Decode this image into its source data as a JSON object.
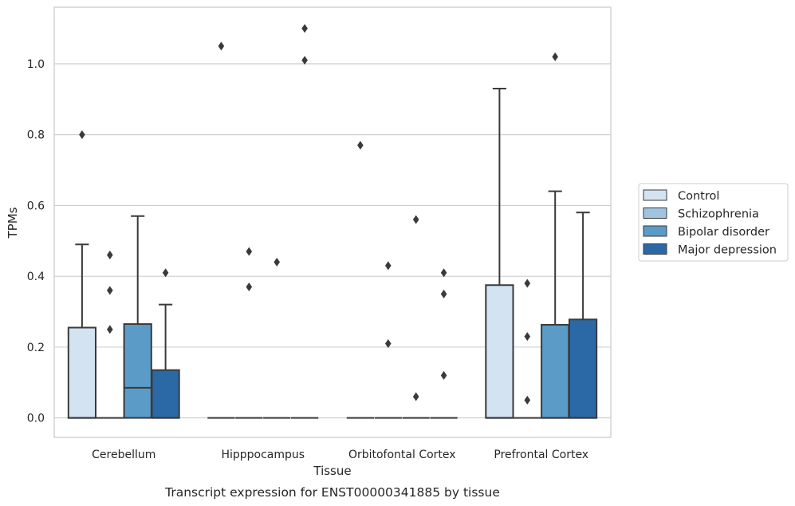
{
  "chart_data": {
    "type": "box",
    "title": "",
    "caption": "Transcript expression for ENST00000341885 by tissue",
    "xlabel": "Tissue",
    "ylabel": "TPMs",
    "ylim": [
      -0.055,
      1.16
    ],
    "yticks": [
      0.0,
      0.2,
      0.4,
      0.6,
      0.8,
      1.0
    ],
    "ytick_labels": [
      "0.0",
      "0.2",
      "0.4",
      "0.6",
      "0.8",
      "1.0"
    ],
    "grid": true,
    "legend_position": "right",
    "categories": [
      "Cerebellum",
      "Hipppocampus",
      "Orbitofontal Cortex",
      "Prefrontal Cortex"
    ],
    "series": [
      {
        "name": "Control",
        "color": "#d3e3f2",
        "boxes": [
          {
            "q1": 0.0,
            "median": 0.0,
            "q3": 0.255,
            "whisker_low": 0.0,
            "whisker_high": 0.49,
            "outliers": [
              0.8
            ]
          },
          {
            "q1": 0.0,
            "median": 0.0,
            "q3": 0.0,
            "whisker_low": 0.0,
            "whisker_high": 0.0,
            "outliers": [
              1.05
            ]
          },
          {
            "q1": 0.0,
            "median": 0.0,
            "q3": 0.0,
            "whisker_low": 0.0,
            "whisker_high": 0.0,
            "outliers": [
              0.77
            ]
          },
          {
            "q1": 0.0,
            "median": 0.0,
            "q3": 0.375,
            "whisker_low": 0.0,
            "whisker_high": 0.93,
            "outliers": []
          }
        ]
      },
      {
        "name": "Schizophrenia",
        "color": "#9fc4e0",
        "boxes": [
          {
            "q1": 0.0,
            "median": 0.0,
            "q3": 0.0,
            "whisker_low": 0.0,
            "whisker_high": 0.0,
            "outliers": [
              0.46,
              0.36,
              0.25
            ]
          },
          {
            "q1": 0.0,
            "median": 0.0,
            "q3": 0.0,
            "whisker_low": 0.0,
            "whisker_high": 0.0,
            "outliers": [
              0.47,
              0.37
            ]
          },
          {
            "q1": 0.0,
            "median": 0.0,
            "q3": 0.0,
            "whisker_low": 0.0,
            "whisker_high": 0.0,
            "outliers": [
              0.43,
              0.21
            ]
          },
          {
            "q1": 0.0,
            "median": 0.0,
            "q3": 0.0,
            "whisker_low": 0.0,
            "whisker_high": 0.0,
            "outliers": [
              0.38,
              0.23,
              0.05
            ]
          }
        ]
      },
      {
        "name": "Bipolar disorder",
        "color": "#5b9bc7",
        "boxes": [
          {
            "q1": 0.0,
            "median": 0.085,
            "q3": 0.265,
            "whisker_low": 0.0,
            "whisker_high": 0.57,
            "outliers": []
          },
          {
            "q1": 0.0,
            "median": 0.0,
            "q3": 0.0,
            "whisker_low": 0.0,
            "whisker_high": 0.0,
            "outliers": [
              0.44
            ]
          },
          {
            "q1": 0.0,
            "median": 0.0,
            "q3": 0.0,
            "whisker_low": 0.0,
            "whisker_high": 0.0,
            "outliers": [
              0.56,
              0.06
            ]
          },
          {
            "q1": 0.0,
            "median": 0.0,
            "q3": 0.263,
            "whisker_low": 0.0,
            "whisker_high": 0.64,
            "outliers": [
              1.02
            ]
          }
        ]
      },
      {
        "name": "Major depression",
        "color": "#2a69a6",
        "boxes": [
          {
            "q1": 0.0,
            "median": 0.0,
            "q3": 0.135,
            "whisker_low": 0.0,
            "whisker_high": 0.32,
            "outliers": [
              0.41
            ]
          },
          {
            "q1": 0.0,
            "median": 0.0,
            "q3": 0.0,
            "whisker_low": 0.0,
            "whisker_high": 0.0,
            "outliers": [
              1.1,
              1.01
            ]
          },
          {
            "q1": 0.0,
            "median": 0.0,
            "q3": 0.0,
            "whisker_low": 0.0,
            "whisker_high": 0.0,
            "outliers": [
              0.41,
              0.35,
              0.12
            ]
          },
          {
            "q1": 0.0,
            "median": 0.0,
            "q3": 0.278,
            "whisker_low": 0.0,
            "whisker_high": 0.58,
            "outliers": []
          }
        ]
      }
    ]
  }
}
